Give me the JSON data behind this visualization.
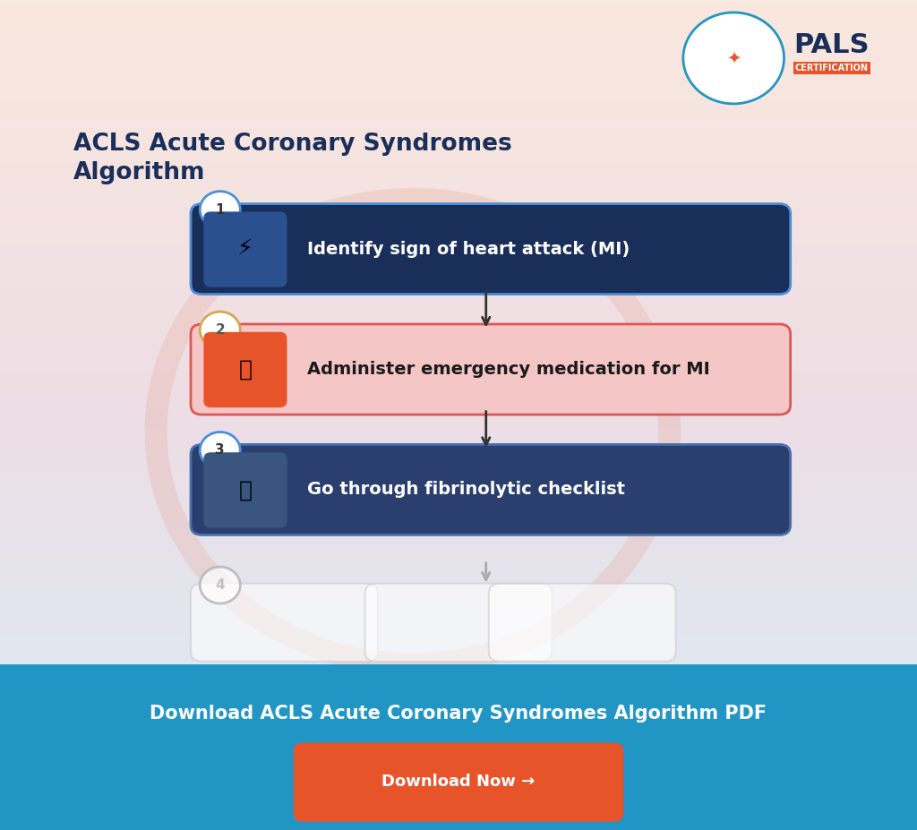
{
  "title": "ACLS Acute Coronary Syndromes\nAlgorithm",
  "title_color": "#1a2e5a",
  "bg_color_top": "#f9e8e0",
  "bg_color_bottom": "#d6e8f5",
  "footer_bg_color": "#2196c4",
  "footer_text": "Download ACLS Acute Coronary Syndromes Algorithm PDF",
  "footer_text_color": "#ffffff",
  "button_text": "Download Now →",
  "button_color": "#e8542a",
  "button_text_color": "#ffffff",
  "steps": [
    {
      "number": "1",
      "text": "Identify sign of heart attack (MI)",
      "box_color": "#1a2e5a",
      "text_color": "#ffffff",
      "border_color": "#4a90d9",
      "number_bg": "#ffffff",
      "number_color": "#1a2e5a"
    },
    {
      "number": "2",
      "text": "Administer emergency medication for MI",
      "box_color": "#f5c6c6",
      "text_color": "#1a1a1a",
      "border_color": "#e05555",
      "number_bg": "#ffffff",
      "number_color": "#1a1a1a"
    },
    {
      "number": "3",
      "text": "Go through fibrinolytic checklist",
      "box_color": "#2a3f6e",
      "text_color": "#ffffff",
      "border_color": "#4a70b0",
      "number_bg": "#ffffff",
      "number_color": "#1a1a1a"
    }
  ],
  "step4_number": "4",
  "pals_text": "PALS",
  "pals_sub": "CERTIFICATION",
  "pals_color": "#1a2e5a",
  "pals_orange": "#e8542a"
}
